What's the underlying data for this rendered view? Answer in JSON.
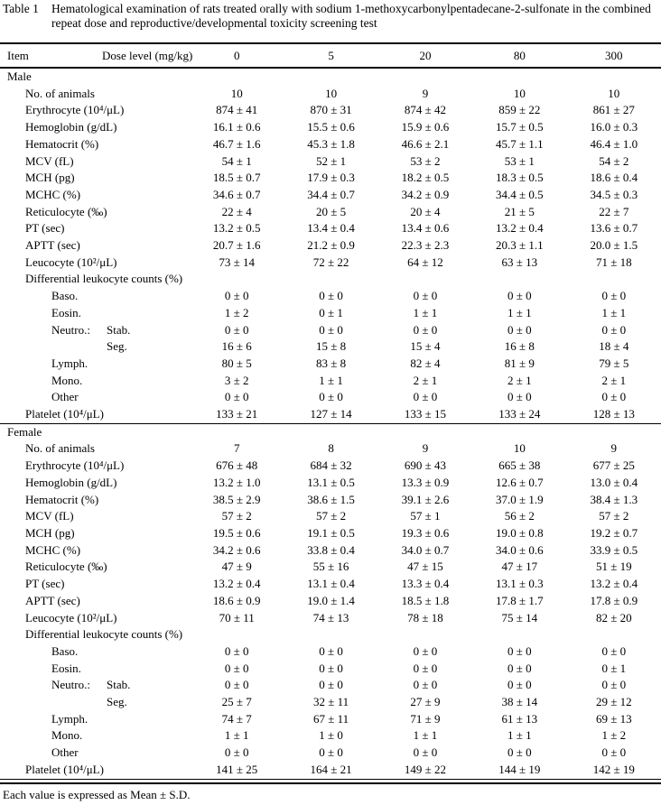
{
  "colors": {
    "text": "#000000",
    "background": "#ffffff",
    "rule": "#000000"
  },
  "title": {
    "label": "Table 1",
    "text": "Hematological examination of rats treated orally with sodium 1-methoxycarbonylpentadecane-2-sulfonate in the combined repeat dose and reproductive/developmental toxicity screening test"
  },
  "table": {
    "header": {
      "item": "Item",
      "dose_label": "Dose level (mg/kg)",
      "doses": [
        "0",
        "5",
        "20",
        "80",
        "300"
      ]
    },
    "sections": [
      {
        "name": "Male",
        "rows": [
          {
            "label": "No. of animals",
            "label2": null,
            "indent": 1,
            "values": [
              "10",
              "10",
              "9",
              "10",
              "10"
            ]
          },
          {
            "label": "Erythrocyte (10⁴/μL)",
            "label2": null,
            "indent": 1,
            "values": [
              "874 ± 41",
              "870 ± 31",
              "874 ± 42",
              "859 ± 22",
              "861 ± 27"
            ]
          },
          {
            "label": "Hemoglobin (g/dL)",
            "label2": null,
            "indent": 1,
            "values": [
              "16.1 ± 0.6",
              "15.5 ± 0.6",
              "15.9 ± 0.6",
              "15.7 ± 0.5",
              "16.0 ± 0.3"
            ]
          },
          {
            "label": "Hematocrit (%)",
            "label2": null,
            "indent": 1,
            "values": [
              "46.7 ± 1.6",
              "45.3 ± 1.8",
              "46.6 ± 2.1",
              "45.7 ± 1.1",
              "46.4 ± 1.0"
            ]
          },
          {
            "label": "MCV (fL)",
            "label2": null,
            "indent": 1,
            "values": [
              "54 ± 1",
              "52 ± 1",
              "53 ± 2",
              "53 ± 1",
              "54 ± 2"
            ]
          },
          {
            "label": "MCH (pg)",
            "label2": null,
            "indent": 1,
            "values": [
              "18.5 ± 0.7",
              "17.9 ± 0.3",
              "18.2 ± 0.5",
              "18.3 ± 0.5",
              "18.6 ± 0.4"
            ]
          },
          {
            "label": "MCHC (%)",
            "label2": null,
            "indent": 1,
            "values": [
              "34.6 ± 0.7",
              "34.4 ± 0.7",
              "34.2 ± 0.9",
              "34.4 ± 0.5",
              "34.5 ± 0.3"
            ]
          },
          {
            "label": "Reticulocyte (‰)",
            "label2": null,
            "indent": 1,
            "values": [
              "22 ± 4",
              "20 ± 5",
              "20 ± 4",
              "21 ± 5",
              "22 ± 7"
            ]
          },
          {
            "label": "PT (sec)",
            "label2": null,
            "indent": 1,
            "values": [
              "13.2 ± 0.5",
              "13.4 ± 0.4",
              "13.4 ± 0.6",
              "13.2 ± 0.4",
              "13.6 ± 0.7"
            ]
          },
          {
            "label": "APTT (sec)",
            "label2": null,
            "indent": 1,
            "values": [
              "20.7 ± 1.6",
              "21.2 ± 0.9",
              "22.3 ± 2.3",
              "20.3 ± 1.1",
              "20.0 ± 1.5"
            ]
          },
          {
            "label": "Leucocyte (10²/μL)",
            "label2": null,
            "indent": 1,
            "values": [
              "73 ± 14",
              "72 ± 22",
              "64 ± 12",
              "63 ± 13",
              "71 ± 18"
            ]
          },
          {
            "label": "Differential leukocyte counts (%)",
            "label2": null,
            "indent": 1,
            "values": []
          },
          {
            "label": "Baso.",
            "label2": null,
            "indent": 2,
            "values": [
              "0 ± 0",
              "0 ± 0",
              "0 ± 0",
              "0 ± 0",
              "0 ± 0"
            ]
          },
          {
            "label": "Eosin.",
            "label2": null,
            "indent": 2,
            "values": [
              "1 ± 2",
              "0 ± 1",
              "1 ± 1",
              "1 ± 1",
              "1 ± 1"
            ]
          },
          {
            "label": "Neutro.:",
            "label2": "Stab.",
            "indent": 2,
            "values": [
              "0 ± 0",
              "0 ± 0",
              "0 ± 0",
              "0 ± 0",
              "0 ± 0"
            ]
          },
          {
            "label": "",
            "label2": "Seg.",
            "indent": 2,
            "values": [
              "16 ± 6",
              "15 ± 8",
              "15 ± 4",
              "16 ± 8",
              "18 ± 4"
            ]
          },
          {
            "label": "Lymph.",
            "label2": null,
            "indent": 2,
            "values": [
              "80 ± 5",
              "83 ± 8",
              "82 ± 4",
              "81 ± 9",
              "79 ± 5"
            ]
          },
          {
            "label": "Mono.",
            "label2": null,
            "indent": 2,
            "values": [
              "3 ± 2",
              "1 ± 1",
              "2 ± 1",
              "2 ± 1",
              "2 ± 1"
            ]
          },
          {
            "label": "Other",
            "label2": null,
            "indent": 2,
            "values": [
              "0 ± 0",
              "0 ± 0",
              "0 ± 0",
              "0 ± 0",
              "0 ± 0"
            ]
          },
          {
            "label": "Platelet (10⁴/μL)",
            "label2": null,
            "indent": 1,
            "values": [
              "133 ± 21",
              "127 ± 14",
              "133 ± 15",
              "133 ± 24",
              "128 ± 13"
            ]
          }
        ]
      },
      {
        "name": "Female",
        "rows": [
          {
            "label": "No. of animals",
            "label2": null,
            "indent": 1,
            "values": [
              "7",
              "8",
              "9",
              "10",
              "9"
            ]
          },
          {
            "label": "Erythrocyte (10⁴/μL)",
            "label2": null,
            "indent": 1,
            "values": [
              "676 ± 48",
              "684 ± 32",
              "690 ± 43",
              "665 ± 38",
              "677 ± 25"
            ]
          },
          {
            "label": "Hemoglobin (g/dL)",
            "label2": null,
            "indent": 1,
            "values": [
              "13.2 ± 1.0",
              "13.1 ± 0.5",
              "13.3 ± 0.9",
              "12.6 ± 0.7",
              "13.0 ± 0.4"
            ]
          },
          {
            "label": "Hematocrit (%)",
            "label2": null,
            "indent": 1,
            "values": [
              "38.5 ± 2.9",
              "38.6 ± 1.5",
              "39.1 ± 2.6",
              "37.0 ± 1.9",
              "38.4 ± 1.3"
            ]
          },
          {
            "label": "MCV (fL)",
            "label2": null,
            "indent": 1,
            "values": [
              "57 ± 2",
              "57 ± 2",
              "57 ± 1",
              "56 ± 2",
              "57 ± 2"
            ]
          },
          {
            "label": "MCH (pg)",
            "label2": null,
            "indent": 1,
            "values": [
              "19.5 ± 0.6",
              "19.1 ± 0.5",
              "19.3 ± 0.6",
              "19.0 ± 0.8",
              "19.2 ± 0.7"
            ]
          },
          {
            "label": "MCHC (%)",
            "label2": null,
            "indent": 1,
            "values": [
              "34.2 ± 0.6",
              "33.8 ± 0.4",
              "34.0 ± 0.7",
              "34.0 ± 0.6",
              "33.9 ± 0.5"
            ]
          },
          {
            "label": "Reticulocyte (‰)",
            "label2": null,
            "indent": 1,
            "values": [
              "47 ± 9",
              "55 ± 16",
              "47 ± 15",
              "47 ± 17",
              "51 ± 19"
            ]
          },
          {
            "label": "PT (sec)",
            "label2": null,
            "indent": 1,
            "values": [
              "13.2 ± 0.4",
              "13.1 ± 0.4",
              "13.3 ± 0.4",
              "13.1 ± 0.3",
              "13.2 ± 0.4"
            ]
          },
          {
            "label": "APTT (sec)",
            "label2": null,
            "indent": 1,
            "values": [
              "18.6 ± 0.9",
              "19.0 ± 1.4",
              "18.5 ± 1.8",
              "17.8 ± 1.7",
              "17.8 ± 0.9"
            ]
          },
          {
            "label": "Leucocyte (10²/μL)",
            "label2": null,
            "indent": 1,
            "values": [
              "70 ± 11",
              "74 ± 13",
              "78 ± 18",
              "75 ± 14",
              "82 ± 20"
            ]
          },
          {
            "label": "Differential leukocyte counts (%)",
            "label2": null,
            "indent": 1,
            "values": []
          },
          {
            "label": "Baso.",
            "label2": null,
            "indent": 2,
            "values": [
              "0 ± 0",
              "0 ± 0",
              "0 ± 0",
              "0 ± 0",
              "0 ± 0"
            ]
          },
          {
            "label": "Eosin.",
            "label2": null,
            "indent": 2,
            "values": [
              "0 ± 0",
              "0 ± 0",
              "0 ± 0",
              "0 ± 0",
              "0 ± 1"
            ]
          },
          {
            "label": "Neutro.:",
            "label2": "Stab.",
            "indent": 2,
            "values": [
              "0 ± 0",
              "0 ± 0",
              "0 ± 0",
              "0 ± 0",
              "0 ± 0"
            ]
          },
          {
            "label": "",
            "label2": "Seg.",
            "indent": 2,
            "values": [
              "25 ± 7",
              "32 ± 11",
              "27 ± 9",
              "38 ± 14",
              "29 ± 12"
            ]
          },
          {
            "label": "Lymph.",
            "label2": null,
            "indent": 2,
            "values": [
              "74 ± 7",
              "67 ± 11",
              "71 ± 9",
              "61 ± 13",
              "69 ± 13"
            ]
          },
          {
            "label": "Mono.",
            "label2": null,
            "indent": 2,
            "values": [
              "1 ± 1",
              "1 ± 0",
              "1 ± 1",
              "1 ± 1",
              "1 ± 2"
            ]
          },
          {
            "label": "Other",
            "label2": null,
            "indent": 2,
            "values": [
              "0 ± 0",
              "0 ± 0",
              "0 ± 0",
              "0 ± 0",
              "0 ± 0"
            ]
          },
          {
            "label": "Platelet (10⁴/μL)",
            "label2": null,
            "indent": 1,
            "values": [
              "141 ± 25",
              "164 ± 21",
              "149 ± 22",
              "144 ± 19",
              "142 ± 19"
            ]
          }
        ]
      }
    ]
  },
  "footnote": "Each value is expressed as Mean ± S.D."
}
